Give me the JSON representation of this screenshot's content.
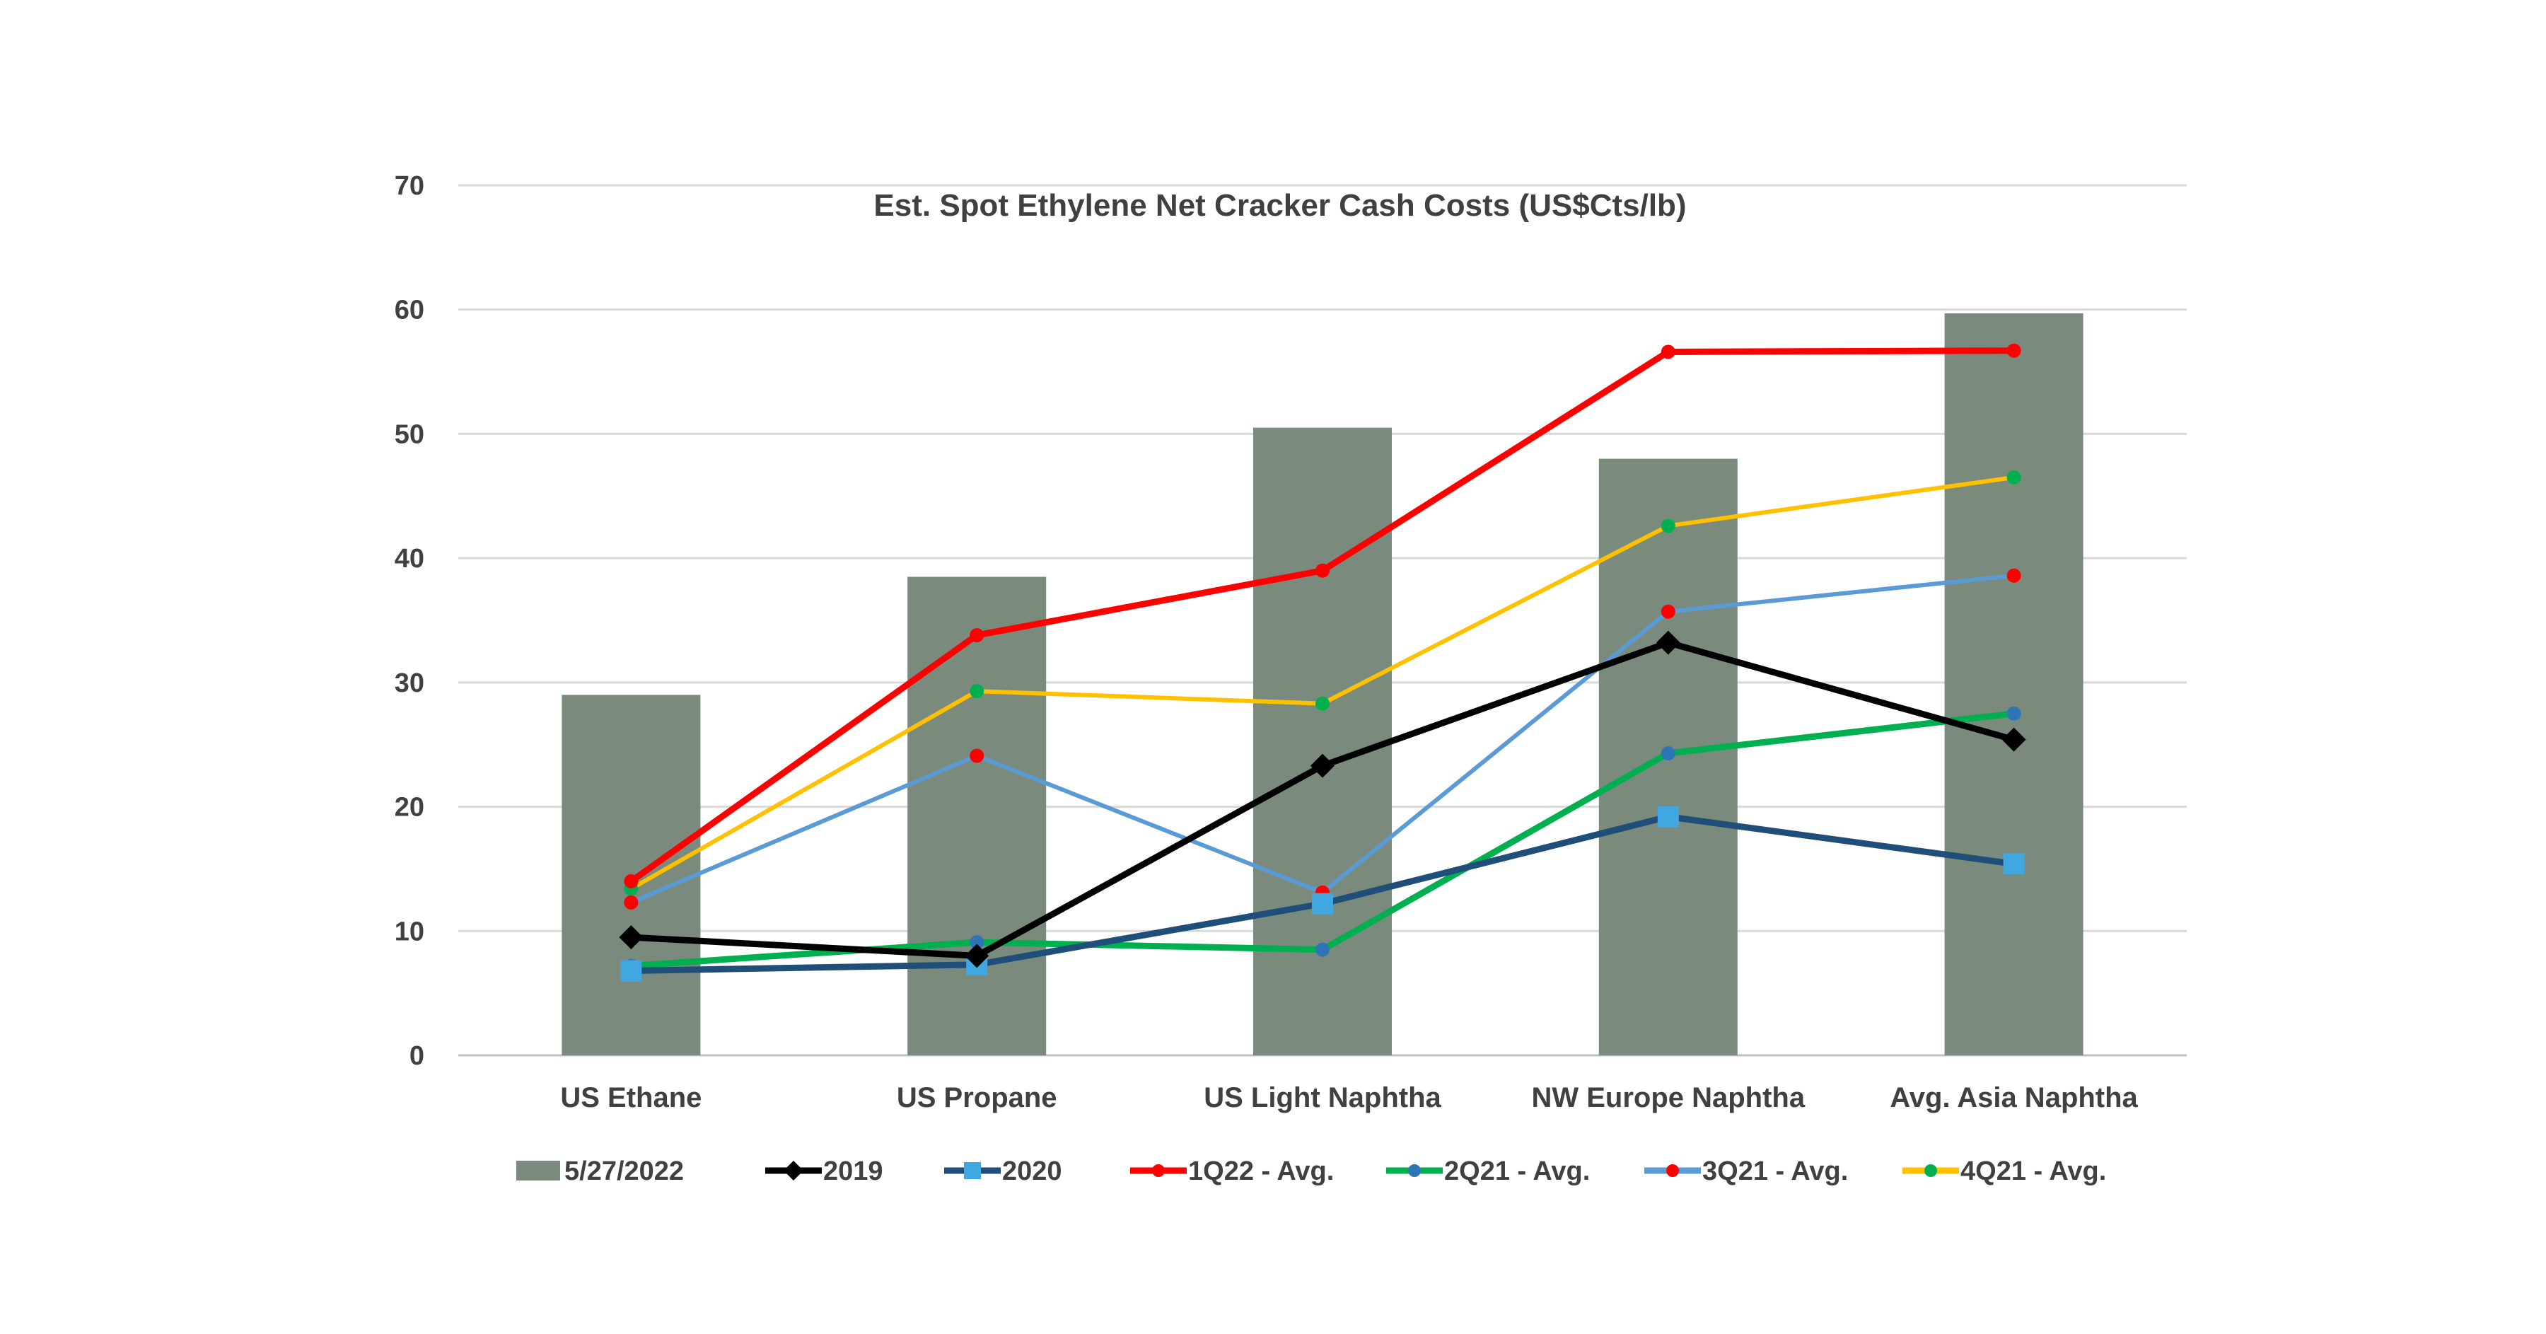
{
  "chart_data": {
    "type": "bar",
    "title": "Est. Spot Ethylene Net Cracker Cash Costs (US$Cts/lb)",
    "categories": [
      "US Ethane",
      "US Propane",
      "US Light Naphtha",
      "NW Europe Naphtha",
      "Avg. Asia Naphtha"
    ],
    "ylim": [
      0,
      70
    ],
    "yticks": [
      0,
      10,
      20,
      30,
      40,
      50,
      60,
      70
    ],
    "grid": true,
    "legend_position": "bottom",
    "bar_series": {
      "name": "5/27/2022",
      "color": "#7a8b7d",
      "values": [
        29,
        38.5,
        50.5,
        48,
        59.7
      ]
    },
    "line_series": [
      {
        "name": "2019",
        "color": "#000000",
        "marker": "diamond",
        "marker_color": "#000000",
        "values": [
          9.5,
          8,
          23.3,
          33.2,
          25.4
        ]
      },
      {
        "name": "2020",
        "color": "#1f4e79",
        "marker": "square",
        "marker_color": "#41a7e1",
        "values": [
          6.8,
          7.3,
          12.2,
          19.2,
          15.4
        ]
      },
      {
        "name": "1Q22 - Avg.",
        "color": "#ff0000",
        "marker": "circle",
        "marker_color": "#ff0000",
        "values": [
          14,
          33.8,
          39,
          56.6,
          56.7
        ]
      },
      {
        "name": "2Q21 - Avg.",
        "color": "#00b050",
        "marker": "circle",
        "marker_color": "#2e75b6",
        "values": [
          7.2,
          9.1,
          8.5,
          24.3,
          27.5
        ]
      },
      {
        "name": "3Q21 - Avg.",
        "color": "#5b9bd5",
        "marker": "circle",
        "marker_color": "#ff0000",
        "values": [
          12.3,
          24.1,
          13.1,
          35.7,
          38.6
        ]
      },
      {
        "name": "4Q21 - Avg.",
        "color": "#ffc000",
        "marker": "circle",
        "marker_color": "#00b050",
        "values": [
          13.4,
          29.3,
          28.3,
          42.6,
          46.5
        ]
      }
    ]
  }
}
